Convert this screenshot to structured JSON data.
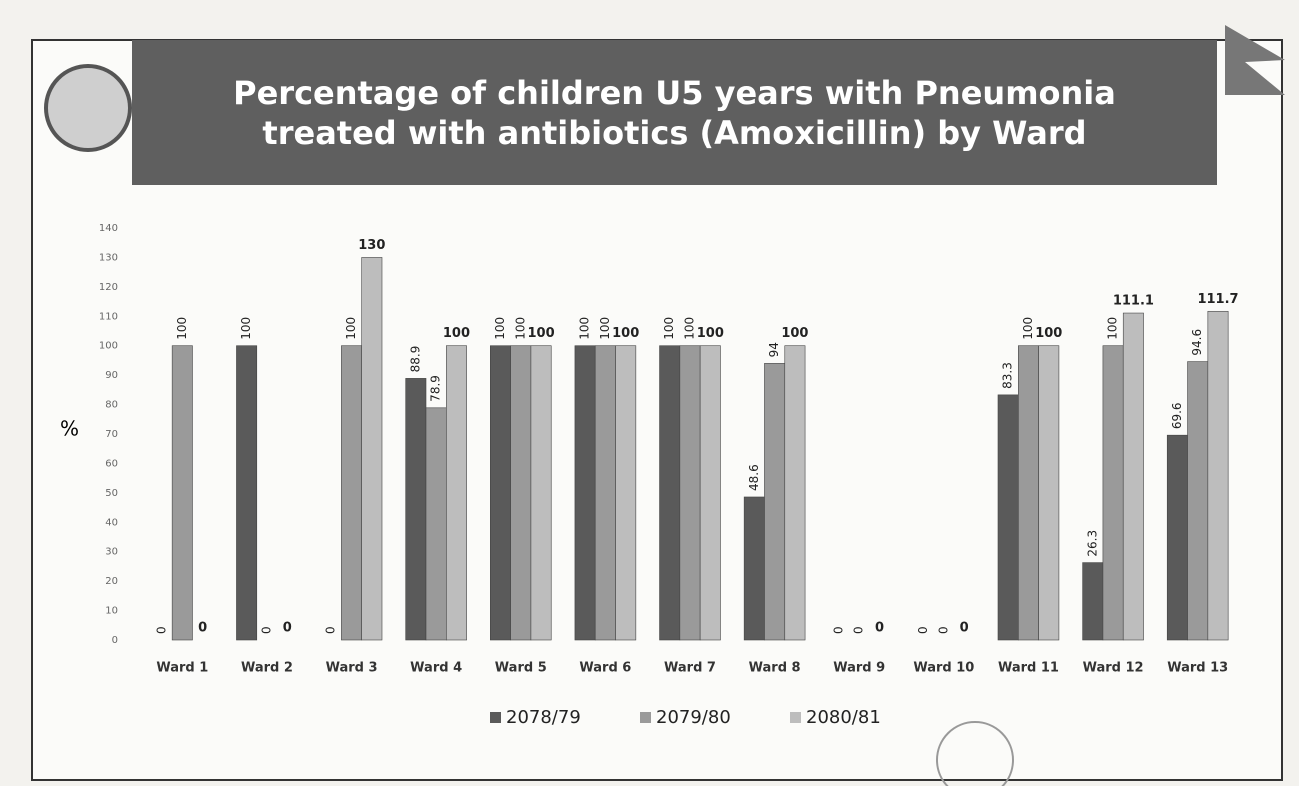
{
  "chart_data": {
    "type": "bar",
    "title": "Percentage of children U5 years with Pneumonia treated with antibiotics (Amoxicillin) by Ward",
    "y_label": "%",
    "categories": [
      "Ward 1",
      "Ward 2",
      "Ward 3",
      "Ward 4",
      "Ward 5",
      "Ward 6",
      "Ward 7",
      "Ward 8",
      "Ward 9",
      "Ward 10",
      "Ward 11",
      "Ward 12",
      "Ward 13"
    ],
    "series": [
      {
        "name": "2078/79",
        "color": "#5a5a5a",
        "values": [
          0,
          100,
          0,
          88.9,
          100,
          100,
          100,
          48.6,
          0,
          0,
          83.3,
          26.3,
          69.6
        ]
      },
      {
        "name": "2079/80",
        "color": "#9a9a9a",
        "values": [
          100,
          0,
          100,
          78.9,
          100,
          100,
          100,
          94,
          0,
          0,
          100,
          100,
          94.6
        ]
      },
      {
        "name": "2080/81",
        "color": "#bdbdbd",
        "values": [
          0,
          0,
          130,
          100,
          100,
          100,
          100,
          100,
          0,
          0,
          100,
          111.1,
          111.7
        ]
      }
    ],
    "ylim": [
      0,
      140
    ],
    "yticks": [
      0,
      10,
      20,
      30,
      40,
      50,
      60,
      70,
      80,
      90,
      100,
      110,
      120,
      130,
      140
    ],
    "grid": false,
    "legend": "bottom"
  }
}
